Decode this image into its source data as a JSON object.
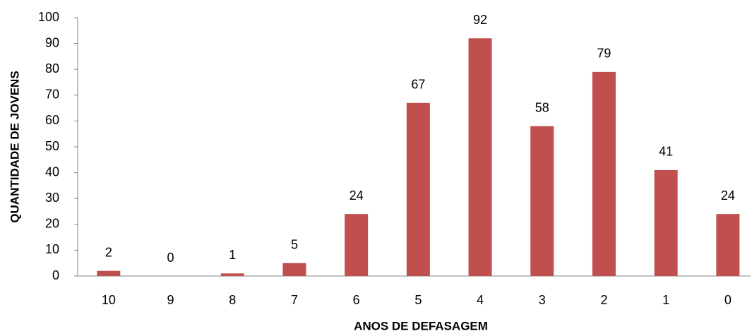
{
  "chart_data": {
    "type": "bar",
    "x_label": "ANOS DE DEFASAGEM",
    "y_label": "QUANTIDADE DE JOVENS",
    "categories": [
      "10",
      "9",
      "8",
      "7",
      "6",
      "5",
      "4",
      "3",
      "2",
      "1",
      "0"
    ],
    "values": [
      2,
      0,
      1,
      5,
      24,
      67,
      92,
      58,
      79,
      41,
      24
    ],
    "color": "#c0504d",
    "ylim": [
      0,
      100
    ],
    "yticks": [
      0,
      10,
      20,
      30,
      40,
      50,
      60,
      70,
      80,
      90,
      100
    ],
    "grid": false
  }
}
